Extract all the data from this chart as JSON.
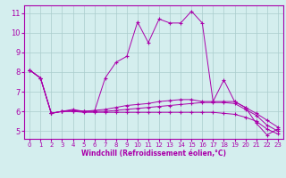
{
  "xlabel": "Windchill (Refroidissement éolien,°C)",
  "background_color": "#d4eeee",
  "line_color": "#aa00aa",
  "grid_color": "#aacccc",
  "xlim": [
    -0.5,
    23.5
  ],
  "ylim": [
    4.6,
    11.4
  ],
  "xticks": [
    0,
    1,
    2,
    3,
    4,
    5,
    6,
    7,
    8,
    9,
    10,
    11,
    12,
    13,
    14,
    15,
    16,
    17,
    18,
    19,
    20,
    21,
    22,
    23
  ],
  "yticks": [
    5,
    6,
    7,
    8,
    9,
    10,
    11
  ],
  "line1_y": [
    8.1,
    7.7,
    5.9,
    6.0,
    6.1,
    6.0,
    6.0,
    7.7,
    8.5,
    8.8,
    10.55,
    9.5,
    10.7,
    10.5,
    10.5,
    11.1,
    10.5,
    6.5,
    7.6,
    6.5,
    6.2,
    5.4,
    4.8,
    5.1
  ],
  "line2_y": [
    8.1,
    7.7,
    5.9,
    6.0,
    6.05,
    6.0,
    6.05,
    6.1,
    6.2,
    6.3,
    6.35,
    6.4,
    6.5,
    6.55,
    6.6,
    6.6,
    6.5,
    6.5,
    6.5,
    6.5,
    6.2,
    5.9,
    5.55,
    5.2
  ],
  "line3_y": [
    8.1,
    7.7,
    5.9,
    6.0,
    6.0,
    6.0,
    6.0,
    6.0,
    6.05,
    6.1,
    6.15,
    6.2,
    6.25,
    6.3,
    6.35,
    6.4,
    6.45,
    6.45,
    6.45,
    6.4,
    6.1,
    5.8,
    5.3,
    5.0
  ],
  "line4_y": [
    8.1,
    7.7,
    5.9,
    6.0,
    6.0,
    5.95,
    5.95,
    5.95,
    5.95,
    5.95,
    5.95,
    5.95,
    5.95,
    5.95,
    5.95,
    5.95,
    5.95,
    5.95,
    5.9,
    5.85,
    5.7,
    5.5,
    5.1,
    4.85
  ]
}
